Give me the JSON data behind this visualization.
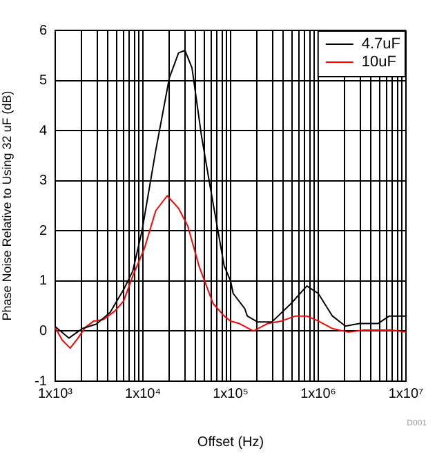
{
  "chart_data": {
    "type": "line",
    "xlabel": "Offset (Hz)",
    "ylabel": "Phase Noise Relative to Using 32 uF (dB)",
    "log": "x",
    "grid": true,
    "legend": "top right",
    "marker": "none",
    "line_style": "solid",
    "xlim": [
      1000,
      10000000
    ],
    "ylim": [
      -1,
      6
    ],
    "xticks": [
      {
        "value": 1000,
        "label": "1x10³"
      },
      {
        "value": 2000,
        "label": null
      },
      {
        "value": 3000,
        "label": null
      },
      {
        "value": 4000,
        "label": null
      },
      {
        "value": 5000,
        "label": null
      },
      {
        "value": 6000,
        "label": null
      },
      {
        "value": 7000,
        "label": null
      },
      {
        "value": 8000,
        "label": null
      },
      {
        "value": 9000,
        "label": null
      },
      {
        "value": 10000,
        "label": "1x10⁴"
      },
      {
        "value": 20000,
        "label": null
      },
      {
        "value": 30000,
        "label": null
      },
      {
        "value": 40000,
        "label": null
      },
      {
        "value": 50000,
        "label": null
      },
      {
        "value": 60000,
        "label": null
      },
      {
        "value": 70000,
        "label": null
      },
      {
        "value": 80000,
        "label": null
      },
      {
        "value": 90000,
        "label": null
      },
      {
        "value": 100000,
        "label": "1x10⁵"
      },
      {
        "value": 200000,
        "label": null
      },
      {
        "value": 300000,
        "label": null
      },
      {
        "value": 400000,
        "label": null
      },
      {
        "value": 500000,
        "label": null
      },
      {
        "value": 600000,
        "label": null
      },
      {
        "value": 700000,
        "label": null
      },
      {
        "value": 800000,
        "label": null
      },
      {
        "value": 900000,
        "label": null
      },
      {
        "value": 1000000,
        "label": "1x10⁶"
      },
      {
        "value": 2000000,
        "label": null
      },
      {
        "value": 3000000,
        "label": null
      },
      {
        "value": 4000000,
        "label": null
      },
      {
        "value": 5000000,
        "label": null
      },
      {
        "value": 6000000,
        "label": null
      },
      {
        "value": 7000000,
        "label": null
      },
      {
        "value": 8000000,
        "label": null
      },
      {
        "value": 9000000,
        "label": null
      },
      {
        "value": 10000000,
        "label": "1x10⁷"
      }
    ],
    "yticks": [
      -1,
      0,
      1,
      2,
      3,
      4,
      5,
      6
    ],
    "series": [
      {
        "name": "4.7uF",
        "color": "#000000",
        "x": [
          1000,
          1430,
          2040,
          2950,
          4220,
          6030,
          7670,
          9770,
          14000,
          20000,
          25500,
          30200,
          36300,
          46500,
          58900,
          84500,
          100000,
          107000,
          145000,
          155000,
          204000,
          295000,
          490000,
          741000,
          1000000,
          1450000,
          2040000,
          2950000,
          4790000,
          6460000,
          10000000
        ],
        "values": [
          0.09,
          -0.14,
          0.05,
          0.14,
          0.37,
          0.83,
          1.2,
          2.0,
          3.6,
          5.05,
          5.55,
          5.6,
          5.25,
          3.9,
          2.85,
          1.3,
          1.0,
          0.75,
          0.45,
          0.3,
          0.18,
          0.18,
          0.55,
          0.9,
          0.75,
          0.3,
          0.1,
          0.15,
          0.15,
          0.3,
          0.3
        ]
      },
      {
        "name": "10uF",
        "color": "#ff0000",
        "x": [
          1000,
          1200,
          1480,
          1820,
          2190,
          2750,
          3550,
          4790,
          6030,
          7670,
          10400,
          14000,
          18900,
          25500,
          32400,
          43600,
          63100,
          84500,
          100000,
          126000,
          182000,
          263000,
          380000,
          550000,
          741000,
          1000000,
          1450000,
          2190000,
          3310000,
          6760000,
          10000000
        ],
        "values": [
          0.07,
          -0.18,
          -0.34,
          -0.14,
          0.07,
          0.2,
          0.23,
          0.4,
          0.6,
          1.1,
          1.65,
          2.4,
          2.7,
          2.45,
          2.1,
          1.3,
          0.55,
          0.3,
          0.2,
          0.15,
          0.0,
          0.15,
          0.2,
          0.3,
          0.3,
          0.2,
          0.05,
          -0.02,
          0.02,
          0.02,
          -0.02
        ]
      }
    ],
    "annotations": [
      "D001"
    ]
  }
}
